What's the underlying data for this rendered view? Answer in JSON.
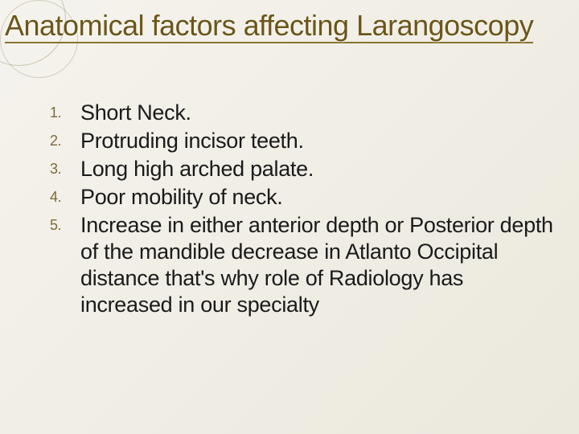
{
  "title": "Anatomical factors affecting Larangoscopy",
  "title_color": "#6b5518",
  "title_underline_color": "#8a7530",
  "number_color": "#7a6a3a",
  "text_color": "#1a1a1a",
  "items": [
    {
      "num": "1.",
      "text": "Short Neck."
    },
    {
      "num": "2.",
      "text": "Protruding incisor teeth."
    },
    {
      "num": "3.",
      "text": "Long high arched palate."
    },
    {
      "num": "4.",
      "text": "Poor mobility of neck."
    },
    {
      "num": "5.",
      "text": "Increase in either anterior depth or Posterior depth of the mandible decrease in Atlanto Occipital distance that's why role of Radiology has increased in our specialty"
    }
  ]
}
